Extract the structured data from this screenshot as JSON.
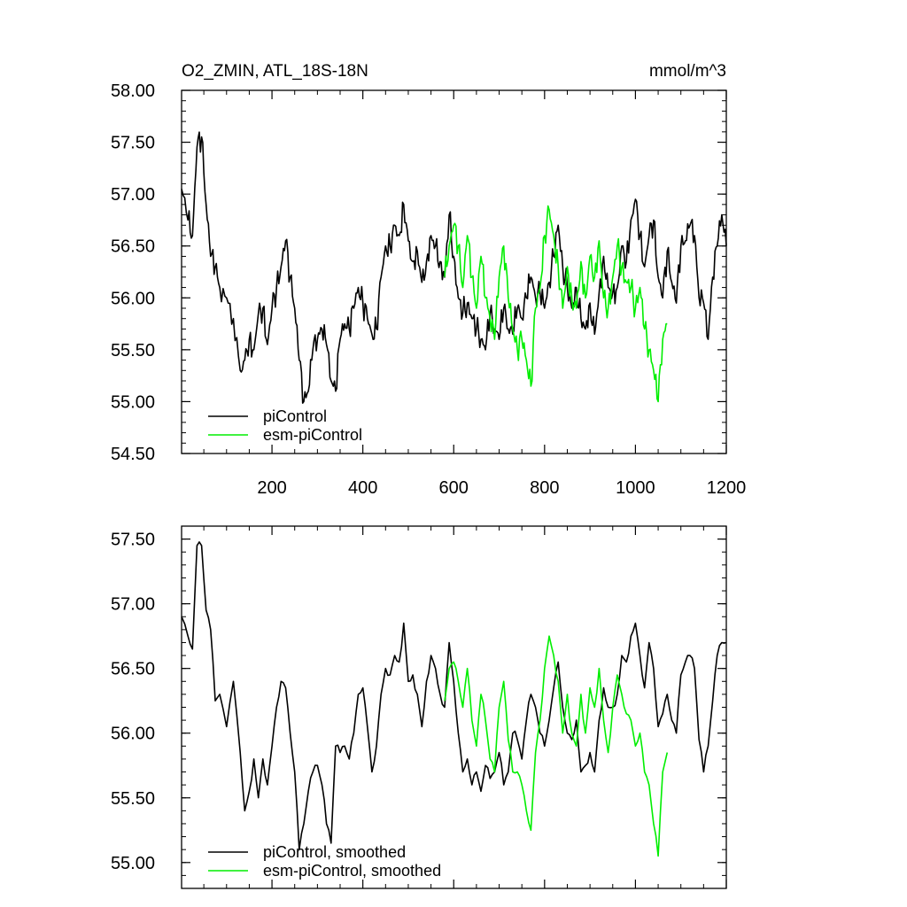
{
  "chart_data": [
    {
      "type": "line",
      "title": "O2_ZMIN, ATL_18S-18N",
      "units": "mmol/m^3",
      "xlim": [
        1,
        1200
      ],
      "ylim": [
        54.5,
        58.0
      ],
      "yticks": [
        "54.50",
        "55.00",
        "55.50",
        "56.00",
        "56.50",
        "57.00",
        "57.50",
        "58.00"
      ],
      "xticks": [
        "200",
        "400",
        "600",
        "800",
        "1000",
        "1200"
      ],
      "legend_position": "bottom-left",
      "series": [
        {
          "name": "piControl",
          "color": "#000000",
          "x": [
            1,
            15,
            25,
            35,
            45,
            55,
            65,
            75,
            85,
            100,
            115,
            130,
            140,
            150,
            160,
            170,
            180,
            190,
            200,
            210,
            220,
            230,
            240,
            250,
            260,
            270,
            280,
            290,
            300,
            310,
            320,
            330,
            340,
            350,
            360,
            370,
            380,
            390,
            400,
            410,
            420,
            430,
            440,
            450,
            460,
            470,
            480,
            490,
            500,
            510,
            520,
            530,
            540,
            550,
            560,
            570,
            580,
            590,
            600,
            610,
            620,
            630,
            640,
            650,
            660,
            670,
            680,
            690,
            700,
            710,
            720,
            730,
            740,
            750,
            760,
            770,
            780,
            790,
            800,
            810,
            820,
            830,
            840,
            850,
            860,
            870,
            880,
            890,
            900,
            910,
            920,
            930,
            940,
            950,
            960,
            970,
            980,
            990,
            1000,
            1010,
            1020,
            1030,
            1040,
            1050,
            1060,
            1070,
            1080,
            1090,
            1100,
            1110,
            1120,
            1130,
            1140,
            1150,
            1160,
            1170,
            1180,
            1190,
            1200
          ],
          "values": [
            57.05,
            56.75,
            56.6,
            57.45,
            57.55,
            56.9,
            56.4,
            56.3,
            56.1,
            56.0,
            55.8,
            55.3,
            55.4,
            55.6,
            55.5,
            55.85,
            55.9,
            55.55,
            55.9,
            56.1,
            56.3,
            56.55,
            56.2,
            55.9,
            55.4,
            55.0,
            55.1,
            55.5,
            55.6,
            55.7,
            55.55,
            55.2,
            55.1,
            55.6,
            55.75,
            55.7,
            55.9,
            56.1,
            55.95,
            55.8,
            55.65,
            55.7,
            56.2,
            56.5,
            56.5,
            56.7,
            56.6,
            56.9,
            56.55,
            56.35,
            56.45,
            56.15,
            56.35,
            56.6,
            56.5,
            56.35,
            56.2,
            56.8,
            56.4,
            56.0,
            55.85,
            55.95,
            55.8,
            55.7,
            55.6,
            55.5,
            55.85,
            55.7,
            55.6,
            55.9,
            55.7,
            55.65,
            55.9,
            55.8,
            56.0,
            56.2,
            56.0,
            56.05,
            55.9,
            56.15,
            56.4,
            56.7,
            56.3,
            56.1,
            55.9,
            56.1,
            55.8,
            55.7,
            55.95,
            55.65,
            56.05,
            56.4,
            56.1,
            56.05,
            56.1,
            56.5,
            56.35,
            56.75,
            56.95,
            56.6,
            56.3,
            56.6,
            56.75,
            56.2,
            56.0,
            56.45,
            56.15,
            55.95,
            56.5,
            56.55,
            56.7,
            56.6,
            56.0,
            55.95,
            55.6,
            56.2,
            56.5,
            56.8,
            56.5
          ]
        },
        {
          "name": "esm-piControl",
          "color": "#00ee00",
          "x": [
            580,
            590,
            600,
            610,
            620,
            630,
            640,
            650,
            660,
            670,
            680,
            690,
            700,
            710,
            720,
            730,
            740,
            750,
            760,
            770,
            780,
            790,
            800,
            810,
            820,
            830,
            840,
            850,
            860,
            870,
            880,
            890,
            900,
            910,
            920,
            930,
            940,
            950,
            960,
            970,
            980,
            990,
            1000,
            1010,
            1020,
            1030,
            1040,
            1050,
            1060,
            1070
          ],
          "values": [
            56.2,
            56.5,
            56.7,
            56.5,
            56.1,
            56.6,
            56.2,
            55.9,
            56.4,
            56.0,
            55.8,
            55.6,
            56.2,
            56.5,
            56.0,
            55.7,
            55.5,
            55.6,
            55.4,
            55.15,
            55.9,
            56.1,
            56.6,
            56.85,
            56.6,
            56.3,
            55.9,
            56.3,
            56.0,
            55.9,
            56.35,
            56.0,
            56.4,
            56.2,
            56.55,
            56.0,
            55.9,
            56.2,
            56.5,
            56.3,
            56.15,
            56.1,
            55.9,
            56.1,
            55.7,
            55.5,
            55.3,
            55.0,
            55.6,
            55.75
          ]
        }
      ]
    },
    {
      "type": "line",
      "xlim": [
        1,
        1200
      ],
      "ylim": [
        54.8,
        57.6
      ],
      "yticks": [
        "55.00",
        "55.50",
        "56.00",
        "56.50",
        "57.00",
        "57.50"
      ],
      "legend_position": "bottom-left",
      "series": [
        {
          "name": "piControl, smoothed",
          "color": "#000000",
          "x": [
            1,
            15,
            25,
            35,
            45,
            55,
            65,
            75,
            85,
            100,
            115,
            130,
            140,
            150,
            160,
            170,
            180,
            190,
            200,
            210,
            220,
            230,
            240,
            250,
            260,
            270,
            280,
            290,
            300,
            310,
            320,
            330,
            340,
            350,
            360,
            370,
            380,
            390,
            400,
            410,
            420,
            430,
            440,
            450,
            460,
            470,
            480,
            490,
            500,
            510,
            520,
            530,
            540,
            550,
            560,
            570,
            580,
            590,
            600,
            610,
            620,
            630,
            640,
            650,
            660,
            670,
            680,
            690,
            700,
            710,
            720,
            730,
            740,
            750,
            760,
            770,
            780,
            790,
            800,
            810,
            820,
            830,
            840,
            850,
            860,
            870,
            880,
            890,
            900,
            910,
            920,
            930,
            940,
            950,
            960,
            970,
            980,
            990,
            1000,
            1010,
            1020,
            1030,
            1040,
            1050,
            1060,
            1070,
            1080,
            1090,
            1100,
            1110,
            1120,
            1130,
            1140,
            1150,
            1160,
            1170,
            1180,
            1190,
            1200
          ],
          "values": [
            56.9,
            56.75,
            56.65,
            57.45,
            57.45,
            56.95,
            56.8,
            56.25,
            56.3,
            56.05,
            56.4,
            55.85,
            55.4,
            55.55,
            55.8,
            55.5,
            55.8,
            55.6,
            55.9,
            56.2,
            56.4,
            56.35,
            56.0,
            55.7,
            55.1,
            55.3,
            55.55,
            55.7,
            55.75,
            55.6,
            55.3,
            55.15,
            55.9,
            55.85,
            55.9,
            55.8,
            56.0,
            56.3,
            56.35,
            56.05,
            55.7,
            55.9,
            56.3,
            56.5,
            56.45,
            56.6,
            56.55,
            56.85,
            56.4,
            56.45,
            56.3,
            56.05,
            56.4,
            56.6,
            56.5,
            56.3,
            56.2,
            56.7,
            56.4,
            56.0,
            55.7,
            55.8,
            55.6,
            55.7,
            55.55,
            55.75,
            55.65,
            55.7,
            55.85,
            55.6,
            55.7,
            56.0,
            55.95,
            55.8,
            56.1,
            56.3,
            56.2,
            56.0,
            55.9,
            56.1,
            56.35,
            56.55,
            56.2,
            56.0,
            55.95,
            56.1,
            55.7,
            55.75,
            55.85,
            55.7,
            56.1,
            56.35,
            56.2,
            56.2,
            56.3,
            56.6,
            56.55,
            56.75,
            56.85,
            56.6,
            56.35,
            56.7,
            56.5,
            56.05,
            56.15,
            56.3,
            56.1,
            56.0,
            56.45,
            56.55,
            56.6,
            56.5,
            55.95,
            55.7,
            55.9,
            56.25,
            56.6,
            56.7,
            56.7
          ]
        },
        {
          "name": "esm-piControl, smoothed",
          "color": "#00ee00",
          "x": [
            580,
            590,
            600,
            610,
            620,
            630,
            640,
            650,
            660,
            670,
            680,
            690,
            700,
            710,
            720,
            730,
            740,
            750,
            760,
            770,
            780,
            790,
            800,
            810,
            820,
            830,
            840,
            850,
            860,
            870,
            880,
            890,
            900,
            910,
            920,
            930,
            940,
            950,
            960,
            970,
            980,
            990,
            1000,
            1010,
            1020,
            1030,
            1040,
            1050,
            1060,
            1070
          ],
          "values": [
            56.25,
            56.5,
            56.55,
            56.4,
            56.2,
            56.5,
            56.1,
            55.9,
            56.3,
            56.1,
            55.8,
            55.7,
            56.2,
            56.4,
            55.95,
            55.7,
            55.7,
            55.6,
            55.4,
            55.25,
            55.85,
            56.1,
            56.5,
            56.75,
            56.6,
            56.4,
            56.0,
            56.3,
            56.0,
            55.9,
            56.3,
            56.0,
            56.35,
            56.2,
            56.5,
            56.1,
            55.85,
            56.2,
            56.45,
            56.3,
            56.15,
            56.1,
            55.9,
            56.0,
            55.7,
            55.6,
            55.3,
            55.05,
            55.7,
            55.85
          ]
        }
      ]
    }
  ]
}
